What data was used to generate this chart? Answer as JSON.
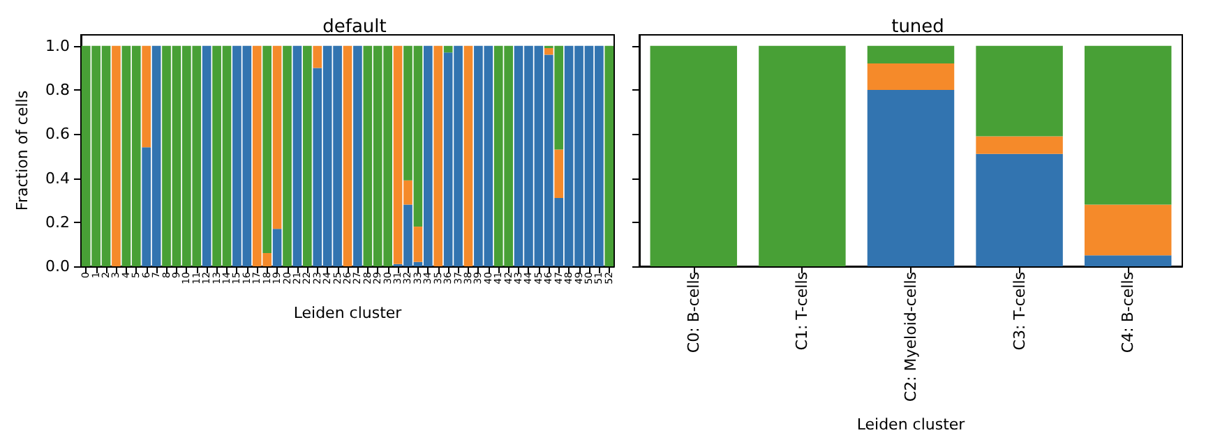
{
  "chart_data": [
    {
      "type": "bar",
      "title": "default",
      "xlabel": "Leiden cluster",
      "ylabel": "Fraction of cells",
      "stacked": true,
      "categories": [
        "0",
        "1",
        "2",
        "3",
        "4",
        "5",
        "6",
        "7",
        "8",
        "9",
        "10",
        "11",
        "12",
        "13",
        "14",
        "15",
        "16",
        "17",
        "18",
        "19",
        "20",
        "21",
        "22",
        "23",
        "24",
        "25",
        "26",
        "27",
        "28",
        "29",
        "30",
        "31",
        "32",
        "33",
        "34",
        "35",
        "36",
        "37",
        "38",
        "39",
        "40",
        "41",
        "42",
        "43",
        "44",
        "45",
        "46",
        "47",
        "48",
        "49",
        "50",
        "51",
        "52"
      ],
      "series": [
        {
          "color": "#3274b0",
          "values": [
            0,
            0,
            0,
            0,
            0,
            0,
            0.54,
            1,
            0,
            0,
            0,
            0,
            1,
            0,
            0,
            1,
            1,
            0,
            0,
            0.17,
            0,
            1,
            0,
            0.9,
            1,
            1,
            0,
            1,
            0,
            0,
            0,
            0.01,
            0.28,
            0.02,
            1,
            0,
            0.97,
            1,
            0,
            1,
            1,
            0,
            0,
            1,
            1,
            1,
            0.96,
            0.31,
            1,
            1,
            1,
            1,
            0
          ]
        },
        {
          "color": "#f58a2a",
          "values": [
            0,
            0,
            0,
            1,
            0,
            0,
            0.46,
            0,
            0,
            0,
            0,
            0,
            0,
            0,
            0,
            0,
            0,
            1,
            0.06,
            0.83,
            0,
            0,
            0,
            0.1,
            0,
            0,
            1,
            0,
            0,
            0,
            0,
            0.99,
            0.11,
            0.16,
            0,
            1,
            0,
            0,
            1,
            0,
            0,
            0,
            0,
            0,
            0,
            0,
            0.03,
            0.22,
            0,
            0,
            0,
            0,
            0
          ]
        },
        {
          "color": "#48a036",
          "values": [
            1,
            1,
            1,
            0,
            1,
            1,
            0,
            0,
            1,
            1,
            1,
            1,
            0,
            1,
            1,
            0,
            0,
            0,
            0.94,
            0,
            1,
            0,
            1,
            0,
            0,
            0,
            0,
            0,
            1,
            1,
            1,
            0,
            0.61,
            0.82,
            0,
            0,
            0.03,
            0,
            0,
            0,
            0,
            1,
            1,
            0,
            0,
            0,
            0.01,
            0.47,
            0,
            0,
            0,
            0,
            1
          ]
        }
      ],
      "ylim": [
        0,
        1.05
      ],
      "yticks": [
        {
          "value": 0,
          "label": "0.0"
        },
        {
          "value": 0.2,
          "label": "0.2"
        },
        {
          "value": 0.4,
          "label": "0.4"
        },
        {
          "value": 0.6,
          "label": "0.6"
        },
        {
          "value": 0.8,
          "label": "0.8"
        },
        {
          "value": 1,
          "label": "1.0"
        }
      ]
    },
    {
      "type": "bar",
      "title": "tuned",
      "xlabel": "Leiden cluster",
      "stacked": true,
      "tick_labels": "x",
      "categories": [
        "C0: B-cells",
        "C1: T-cells",
        "C2: Myeloid-cells",
        "C3: T-cells",
        "C4: B-cells"
      ],
      "series": [
        {
          "color": "#3274b0",
          "values": [
            0,
            0,
            0.8,
            0.51,
            0.05
          ]
        },
        {
          "color": "#f58a2a",
          "values": [
            0,
            0,
            0.12,
            0.08,
            0.23
          ]
        },
        {
          "color": "#48a036",
          "values": [
            1,
            1,
            0.08,
            0.41,
            0.72
          ]
        }
      ],
      "ylim": [
        0,
        1.05
      ],
      "yticks": [
        0,
        0.2,
        0.4,
        0.6,
        0.8,
        1
      ]
    }
  ]
}
